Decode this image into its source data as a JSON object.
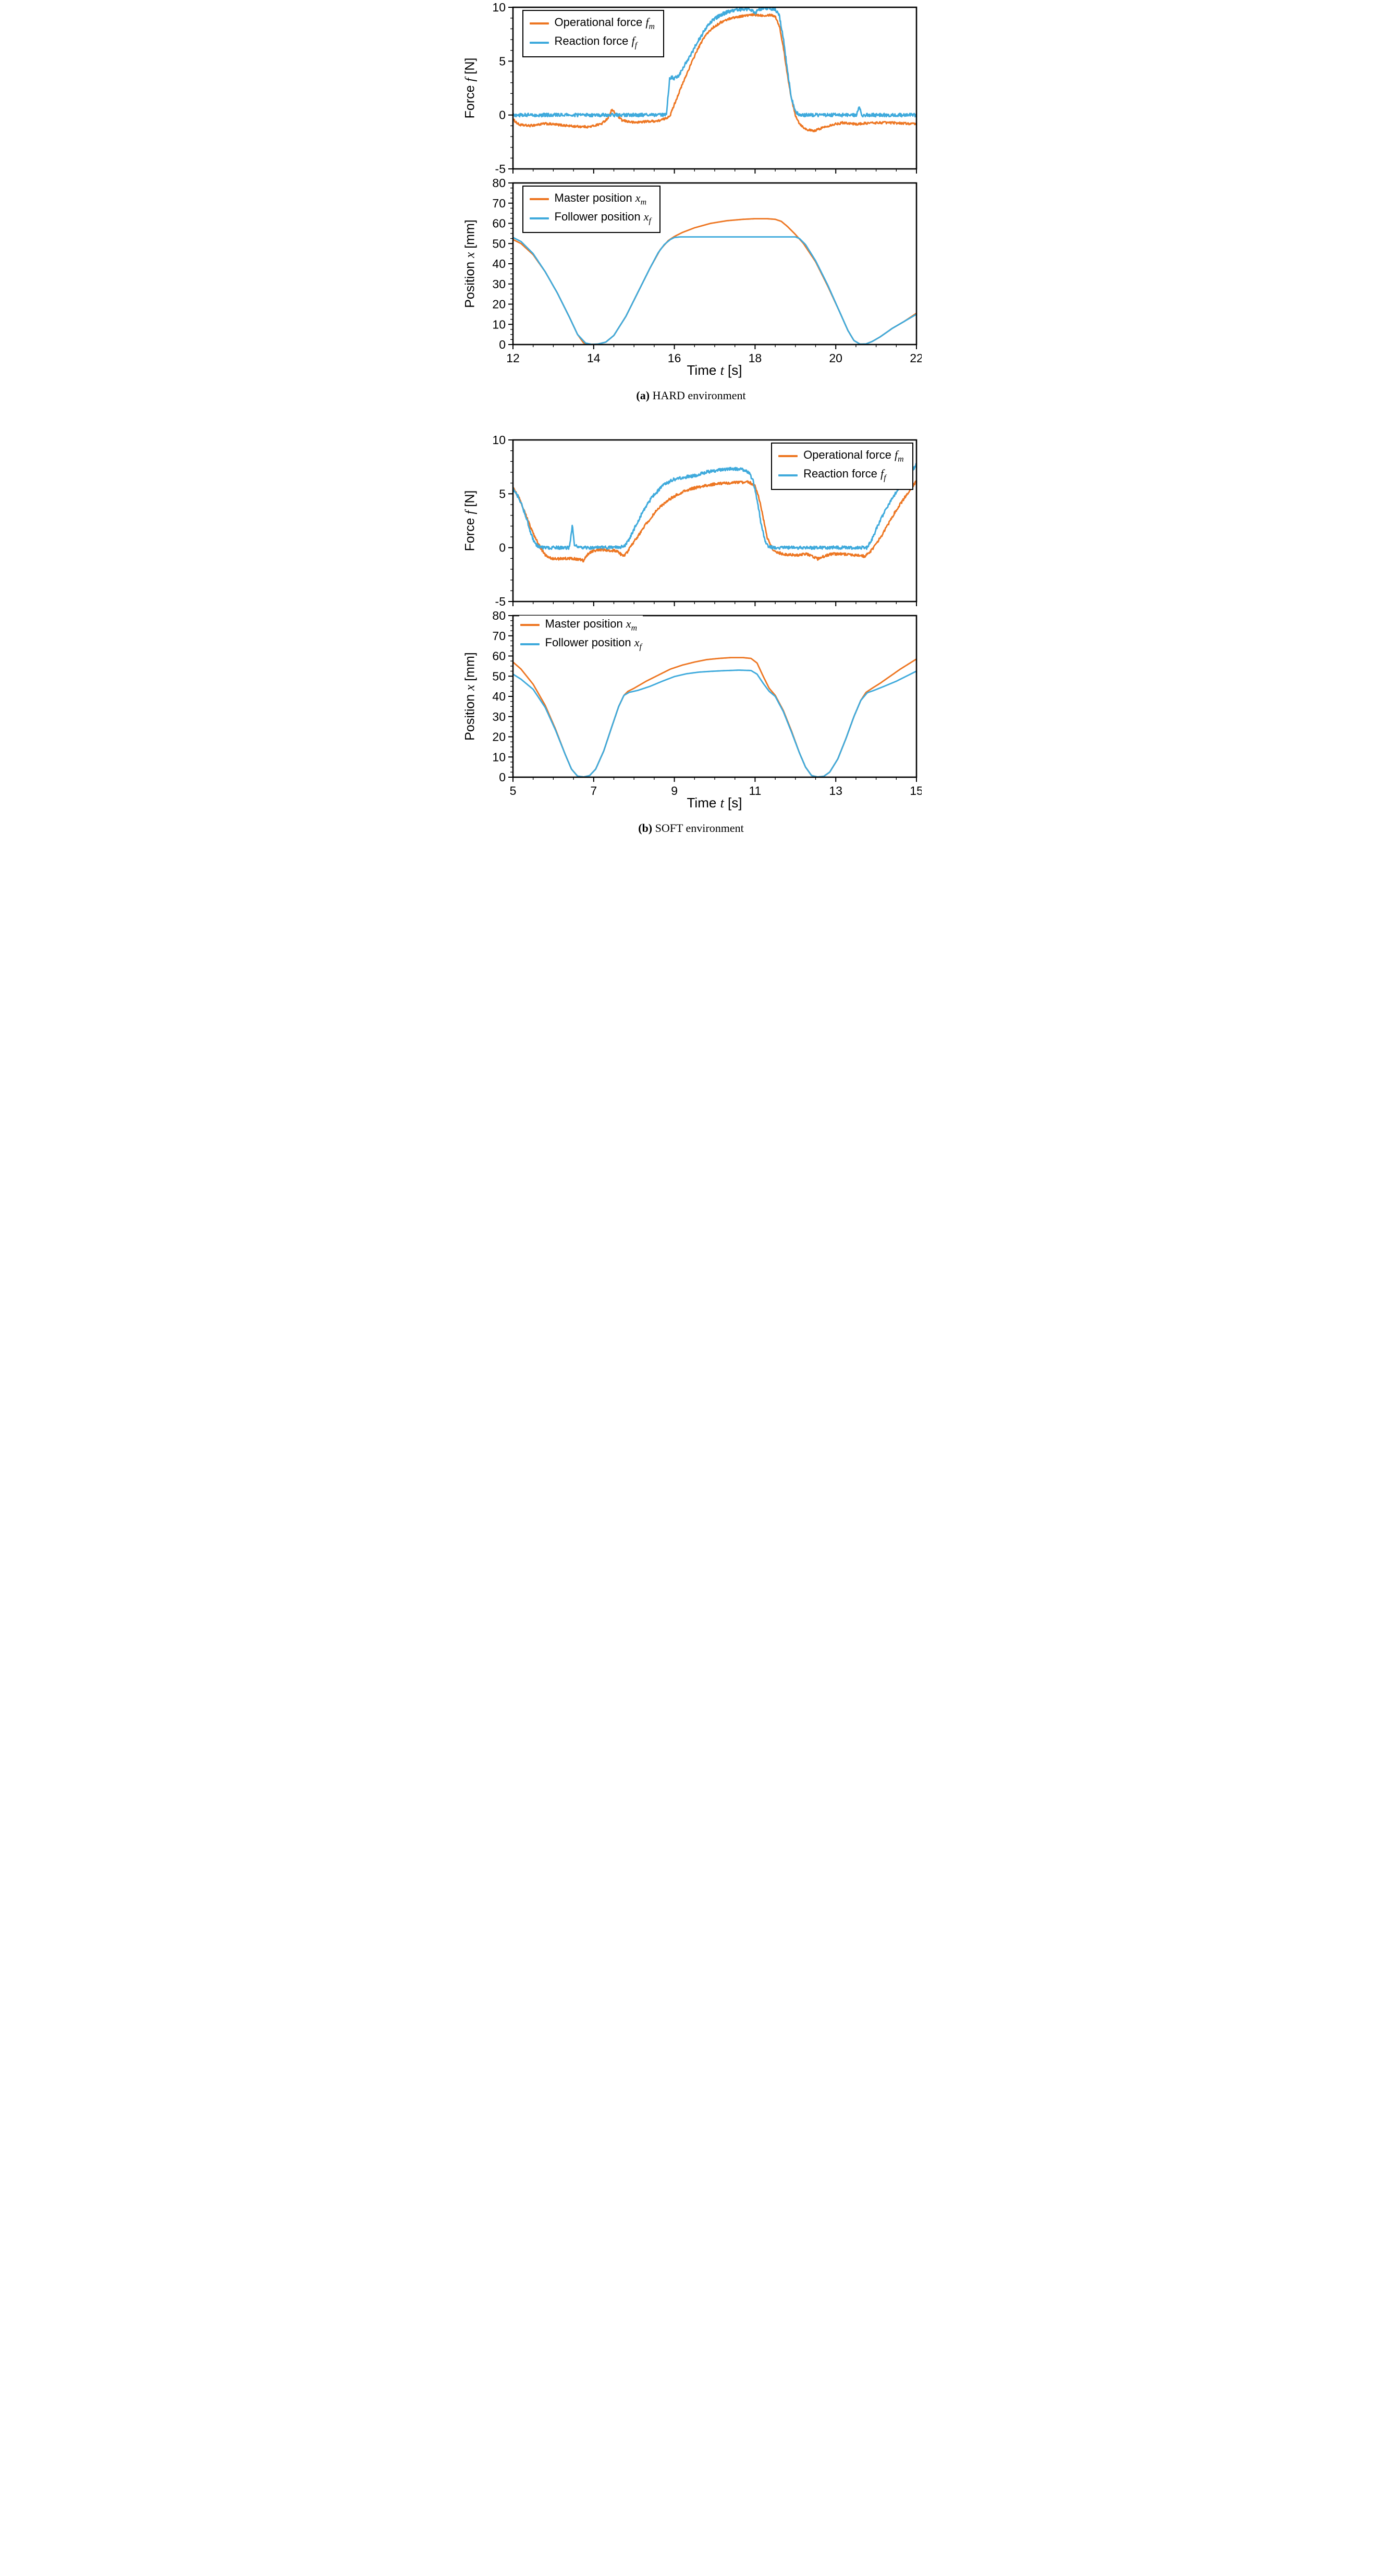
{
  "captions": {
    "a_bold": "(a)",
    "a_text": " HARD environment",
    "b_bold": "(b)",
    "b_text": " SOFT environment"
  },
  "colors": {
    "orange": "#ED7622",
    "blue": "#3FAADC",
    "axis": "#000000"
  },
  "chart_data": [
    {
      "id": "hard-force",
      "type": "line",
      "xlim": [
        12,
        22
      ],
      "ylim": [
        -5,
        10
      ],
      "xticks": [
        12,
        14,
        16,
        18,
        20,
        22
      ],
      "x_minor": 0.5,
      "yticks": [
        -5,
        0,
        5,
        10
      ],
      "y_minor": 1,
      "show_x_labels": false,
      "ylabel": {
        "pre": "Force ",
        "var": "f",
        "post": " [N]"
      },
      "legend": {
        "pos": "top-left",
        "frame": true,
        "entries": [
          {
            "pre": "Operational force ",
            "var": "f",
            "sub": "m"
          },
          {
            "pre": "Reaction force ",
            "var": "f",
            "sub": "f"
          }
        ]
      },
      "series": [
        {
          "name": "Operational force f_m",
          "color": "#ED7622",
          "noise": 0.1,
          "x": [
            12,
            12.15,
            12.4,
            12.8,
            13.1,
            13.5,
            13.9,
            14.2,
            14.35,
            14.45,
            14.55,
            14.7,
            15.0,
            15.3,
            15.6,
            15.8,
            15.9,
            16.0,
            16.15,
            16.35,
            16.55,
            16.75,
            16.95,
            17.15,
            17.4,
            17.7,
            17.95,
            18.2,
            18.4,
            18.5,
            18.6,
            18.7,
            18.8,
            18.9,
            19.0,
            19.1,
            19.25,
            19.45,
            19.65,
            19.9,
            20.2,
            20.5,
            20.8,
            21.2,
            21.6,
            22.0
          ],
          "y": [
            -0.4,
            -0.9,
            -1.0,
            -0.8,
            -0.9,
            -1.05,
            -1.1,
            -0.8,
            -0.3,
            0.5,
            0.1,
            -0.5,
            -0.7,
            -0.6,
            -0.55,
            -0.3,
            0.0,
            1.0,
            2.4,
            4.2,
            5.9,
            7.3,
            8.1,
            8.6,
            9.0,
            9.2,
            9.3,
            9.25,
            9.3,
            9.15,
            8.3,
            6.3,
            3.8,
            1.5,
            0.0,
            -0.8,
            -1.3,
            -1.5,
            -1.2,
            -0.9,
            -0.7,
            -0.85,
            -0.75,
            -0.7,
            -0.75,
            -0.85
          ]
        },
        {
          "name": "Reaction force f_f",
          "color": "#3FAADC",
          "noise": 0.16,
          "x": [
            12,
            15.8,
            15.88,
            15.92,
            16.0,
            16.1,
            16.2,
            16.35,
            16.55,
            16.75,
            16.95,
            17.15,
            17.35,
            17.6,
            17.85,
            18.0,
            18.1,
            18.25,
            18.4,
            18.5,
            18.6,
            18.7,
            18.8,
            18.9,
            19.0,
            19.08,
            19.2,
            20.0,
            20.52,
            20.58,
            20.64,
            21.0,
            22.0
          ],
          "y": [
            0,
            0,
            3.3,
            3.5,
            3.4,
            3.6,
            4.3,
            5.2,
            6.6,
            7.9,
            8.8,
            9.3,
            9.6,
            9.8,
            9.85,
            9.5,
            9.8,
            9.95,
            9.9,
            9.8,
            9.2,
            7.2,
            4.2,
            1.6,
            0.3,
            0.05,
            0,
            0,
            0,
            0.85,
            0,
            0,
            0
          ]
        }
      ]
    },
    {
      "id": "hard-position",
      "type": "line",
      "xlim": [
        12,
        22
      ],
      "ylim": [
        0,
        80
      ],
      "xticks": [
        12,
        14,
        16,
        18,
        20,
        22
      ],
      "x_minor": 0.5,
      "yticks": [
        0,
        10,
        20,
        30,
        40,
        50,
        60,
        70,
        80
      ],
      "y_minor": 2.5,
      "show_x_labels": true,
      "ylabel": {
        "pre": "Position ",
        "var": "x",
        "post": " [mm]"
      },
      "xlabel": {
        "pre": "Time ",
        "var": "t",
        "post": " [s]"
      },
      "legend": {
        "pos": "top-left",
        "frame": true,
        "entries": [
          {
            "pre": "Master position ",
            "var": "x",
            "sub": "m"
          },
          {
            "pre": "Follower position ",
            "var": "x",
            "sub": "f"
          }
        ]
      },
      "series": [
        {
          "name": "Master position x_m",
          "color": "#ED7622",
          "noise": 0,
          "x": [
            12,
            12.2,
            12.5,
            12.8,
            13.1,
            13.4,
            13.6,
            13.75,
            13.9,
            14.1,
            14.3,
            14.5,
            14.8,
            15.1,
            15.4,
            15.65,
            15.85,
            16.0,
            16.2,
            16.5,
            16.9,
            17.3,
            17.7,
            18.0,
            18.3,
            18.5,
            18.65,
            18.8,
            19.0,
            19.2,
            19.5,
            19.8,
            20.1,
            20.3,
            20.45,
            20.6,
            20.75,
            20.9,
            21.1,
            21.4,
            21.7,
            22.0
          ],
          "y": [
            52,
            50,
            44.5,
            36,
            25.5,
            13.5,
            5,
            0.8,
            0.1,
            0.2,
            1.2,
            4.5,
            14,
            26,
            38,
            47,
            51.5,
            53.5,
            55.5,
            57.8,
            60,
            61.3,
            62,
            62.3,
            62.3,
            62,
            61,
            58.5,
            54.5,
            50,
            41,
            29,
            16,
            7,
            2,
            0.2,
            0.3,
            1.5,
            3.8,
            8,
            11.5,
            15.5
          ]
        },
        {
          "name": "Follower position x_f",
          "color": "#3FAADC",
          "noise": 0,
          "x": [
            12,
            12.2,
            12.5,
            12.8,
            13.1,
            13.4,
            13.6,
            13.8,
            13.95,
            14.1,
            14.3,
            14.5,
            14.8,
            15.1,
            15.4,
            15.6,
            15.75,
            15.9,
            16.0,
            16.15,
            19.0,
            19.1,
            19.25,
            19.5,
            19.8,
            20.1,
            20.3,
            20.45,
            20.6,
            20.75,
            20.9,
            21.1,
            21.4,
            21.7,
            22.0
          ],
          "y": [
            53,
            51,
            45,
            36,
            25.5,
            13.5,
            5,
            0.7,
            0.1,
            0.2,
            1.2,
            4.5,
            14,
            26,
            38,
            45.5,
            49.5,
            52,
            53,
            53.3,
            53.3,
            52.5,
            49.5,
            41.5,
            29.5,
            16,
            7,
            2,
            0.2,
            0.3,
            1.5,
            3.8,
            8,
            11.5,
            15
          ]
        }
      ]
    },
    {
      "id": "soft-force",
      "type": "line",
      "xlim": [
        5,
        15
      ],
      "ylim": [
        -5,
        10
      ],
      "xticks": [
        5,
        7,
        9,
        11,
        13,
        15
      ],
      "x_minor": 0.5,
      "yticks": [
        -5,
        0,
        5,
        10
      ],
      "y_minor": 1,
      "show_x_labels": false,
      "ylabel": {
        "pre": "Force ",
        "var": "f",
        "post": " [N]"
      },
      "legend": {
        "pos": "top-right",
        "frame": true,
        "entries": [
          {
            "pre": "Operational force ",
            "var": "f",
            "sub": "m"
          },
          {
            "pre": "Reaction force ",
            "var": "f",
            "sub": "f"
          }
        ]
      },
      "series": [
        {
          "name": "Operational force f_m",
          "color": "#ED7622",
          "noise": 0.12,
          "x": [
            5,
            5.15,
            5.3,
            5.5,
            5.65,
            5.8,
            6.0,
            6.3,
            6.6,
            6.75,
            6.85,
            7.0,
            7.2,
            7.45,
            7.6,
            7.72,
            7.82,
            7.95,
            8.1,
            8.3,
            8.55,
            8.8,
            9.1,
            9.4,
            9.7,
            10.0,
            10.3,
            10.6,
            10.85,
            11.0,
            11.1,
            11.2,
            11.3,
            11.45,
            11.7,
            12.0,
            12.3,
            12.55,
            12.7,
            12.9,
            13.2,
            13.5,
            13.72,
            13.85,
            14.0,
            14.2,
            14.45,
            14.7,
            14.85,
            15.0
          ],
          "y": [
            5.6,
            4.6,
            3.2,
            1.3,
            0.2,
            -0.7,
            -1.05,
            -1.0,
            -1.05,
            -1.2,
            -0.6,
            -0.25,
            -0.2,
            -0.25,
            -0.35,
            -0.8,
            -0.5,
            0.3,
            1.1,
            2.2,
            3.4,
            4.3,
            5.0,
            5.45,
            5.7,
            5.9,
            6.0,
            6.05,
            6.1,
            5.7,
            4.6,
            2.8,
            0.9,
            -0.3,
            -0.6,
            -0.7,
            -0.6,
            -1.05,
            -0.8,
            -0.6,
            -0.6,
            -0.7,
            -0.8,
            -0.4,
            0.3,
            1.5,
            3.2,
            4.6,
            5.4,
            6.2
          ]
        },
        {
          "name": "Reaction force f_f",
          "color": "#3FAADC",
          "noise": 0.15,
          "x": [
            5,
            5.15,
            5.3,
            5.45,
            5.55,
            5.7,
            6.4,
            6.47,
            6.52,
            6.6,
            7.5,
            7.75,
            7.85,
            8.0,
            8.2,
            8.45,
            8.7,
            8.95,
            9.2,
            9.5,
            9.8,
            10.05,
            10.3,
            10.5,
            10.7,
            10.85,
            10.95,
            11.05,
            11.15,
            11.25,
            11.35,
            11.5,
            12.0,
            13.0,
            13.78,
            13.9,
            14.05,
            14.25,
            14.5,
            14.7,
            14.85,
            15.0
          ],
          "y": [
            5.5,
            4.6,
            3.1,
            1.3,
            0.3,
            0,
            0,
            2.1,
            0.3,
            0,
            0,
            0.1,
            0.6,
            1.7,
            3.2,
            4.7,
            5.7,
            6.3,
            6.5,
            6.7,
            7.0,
            7.2,
            7.3,
            7.35,
            7.2,
            7.0,
            6.2,
            4.5,
            2.2,
            0.5,
            0.05,
            0,
            0,
            0,
            0,
            0.8,
            2.1,
            3.6,
            5.2,
            6.3,
            7.0,
            7.7
          ]
        }
      ]
    },
    {
      "id": "soft-position",
      "type": "line",
      "xlim": [
        5,
        15
      ],
      "ylim": [
        0,
        80
      ],
      "xticks": [
        5,
        7,
        9,
        11,
        13,
        15
      ],
      "x_minor": 0.5,
      "yticks": [
        0,
        10,
        20,
        30,
        40,
        50,
        60,
        70,
        80
      ],
      "y_minor": 2.5,
      "show_x_labels": true,
      "ylabel": {
        "pre": "Position ",
        "var": "x",
        "post": " [mm]"
      },
      "xlabel": {
        "pre": "Time ",
        "var": "t",
        "post": " [s]"
      },
      "legend": {
        "pos": "top-left",
        "frame": false,
        "entries": [
          {
            "pre": "Master position ",
            "var": "x",
            "sub": "m"
          },
          {
            "pre": "Follower position ",
            "var": "x",
            "sub": "f"
          }
        ]
      },
      "series": [
        {
          "name": "Master position x_m",
          "color": "#ED7622",
          "noise": 0,
          "x": [
            5,
            5.2,
            5.5,
            5.8,
            6.05,
            6.3,
            6.45,
            6.6,
            6.75,
            6.9,
            7.05,
            7.25,
            7.45,
            7.62,
            7.75,
            7.85,
            8.0,
            8.3,
            8.6,
            8.9,
            9.2,
            9.5,
            9.8,
            10.1,
            10.4,
            10.7,
            10.9,
            11.05,
            11.2,
            11.35,
            11.5,
            11.7,
            11.9,
            12.1,
            12.25,
            12.4,
            12.55,
            12.7,
            12.85,
            13.05,
            13.25,
            13.45,
            13.62,
            13.75,
            13.9,
            14.1,
            14.35,
            14.6,
            14.8,
            15.0
          ],
          "y": [
            57,
            53.5,
            46,
            35.5,
            24,
            11,
            4,
            0.5,
            0.1,
            0.8,
            4,
            13,
            25,
            35,
            40.5,
            42.5,
            44,
            47.5,
            50.5,
            53.5,
            55.5,
            57,
            58.2,
            58.8,
            59.2,
            59.2,
            58.8,
            56.5,
            50,
            44,
            40.5,
            33,
            23,
            12,
            5,
            0.8,
            0.1,
            0.4,
            2.5,
            9,
            19,
            30,
            38,
            42,
            44,
            46.5,
            50,
            53.5,
            56,
            58.5
          ]
        },
        {
          "name": "Follower position x_f",
          "color": "#3FAADC",
          "noise": 0,
          "x": [
            5,
            5.2,
            5.5,
            5.8,
            6.05,
            6.3,
            6.45,
            6.6,
            6.75,
            6.9,
            7.05,
            7.25,
            7.45,
            7.62,
            7.75,
            7.88,
            8.1,
            8.4,
            8.7,
            9.0,
            9.3,
            9.6,
            9.9,
            10.2,
            10.6,
            10.9,
            11.05,
            11.2,
            11.35,
            11.5,
            11.7,
            11.9,
            12.1,
            12.25,
            12.4,
            12.55,
            12.7,
            12.85,
            13.05,
            13.25,
            13.45,
            13.62,
            13.78,
            13.95,
            14.2,
            14.5,
            14.75,
            15.0
          ],
          "y": [
            51,
            48.5,
            43.5,
            34.5,
            23.5,
            11,
            4,
            0.5,
            0.1,
            0.8,
            4,
            13,
            25,
            35,
            40.5,
            42,
            43,
            45,
            47.5,
            49.8,
            51.2,
            52,
            52.4,
            52.7,
            53,
            52.8,
            51,
            46.5,
            42.5,
            40,
            32.5,
            22.5,
            12,
            5,
            0.8,
            0.1,
            0.4,
            2.5,
            9,
            19,
            30,
            38,
            41.8,
            43,
            45,
            47.5,
            50,
            52.5
          ]
        }
      ]
    }
  ]
}
